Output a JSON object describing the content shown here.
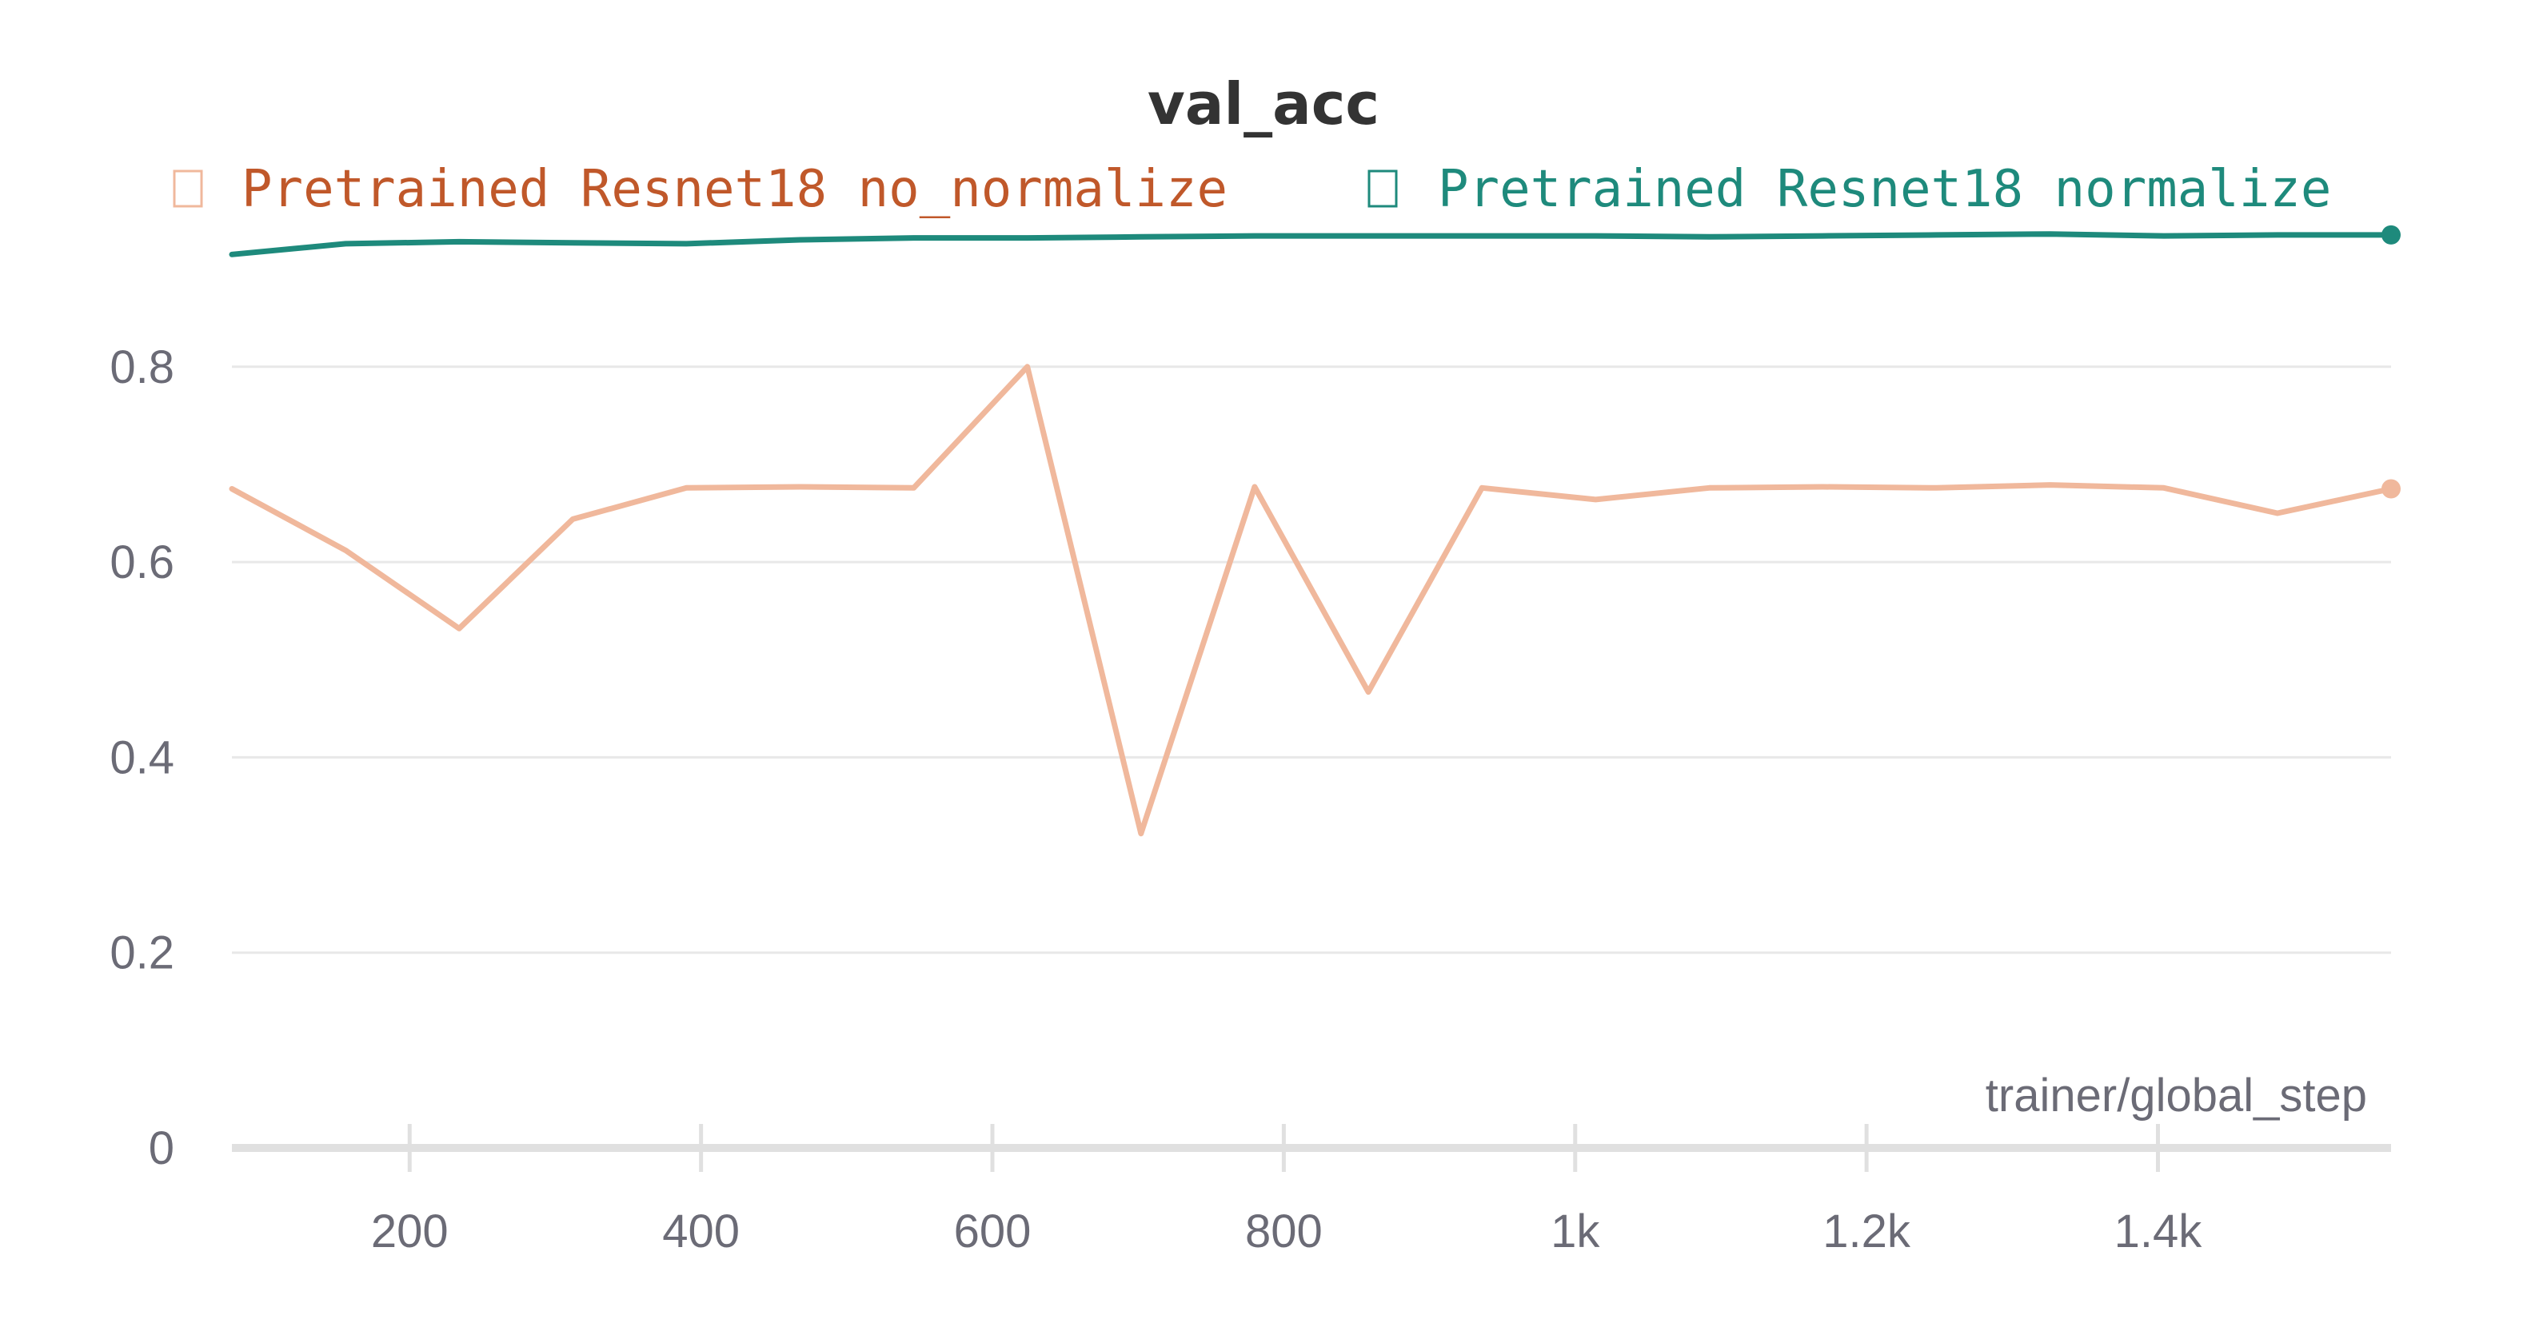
{
  "chart_data": {
    "type": "line",
    "title": "val_acc",
    "xlabel": "trainer/global_step",
    "ylabel": "",
    "xlim": [
      78,
      1560
    ],
    "ylim": [
      0,
      0.93
    ],
    "x_ticks": [
      200,
      400,
      600,
      800,
      1000,
      1200,
      1400
    ],
    "x_tick_labels": [
      "200",
      "400",
      "600",
      "800",
      "1k",
      "1.2k",
      "1.4k"
    ],
    "y_ticks": [
      0,
      0.2,
      0.4,
      0.6,
      0.8
    ],
    "y_tick_labels": [
      "0",
      "0.2",
      "0.4",
      "0.6",
      "0.8"
    ],
    "grid": true,
    "legend_position": "top",
    "series": [
      {
        "name": "Pretrained Resnet18 no_normalize",
        "line_color": "#f0b89c",
        "label_color": "#c0582a",
        "x": [
          78,
          156,
          234,
          312,
          390,
          468,
          546,
          624,
          702,
          780,
          858,
          936,
          1014,
          1092,
          1170,
          1248,
          1326,
          1404,
          1482,
          1560
        ],
        "values": [
          0.675,
          0.612,
          0.532,
          0.644,
          0.676,
          0.677,
          0.676,
          0.8,
          0.322,
          0.677,
          0.467,
          0.676,
          0.664,
          0.676,
          0.677,
          0.676,
          0.679,
          0.676,
          0.65,
          0.675
        ]
      },
      {
        "name": "Pretrained Resnet18 normalize",
        "line_color": "#1e8a7c",
        "label_color": "#1e8a7c",
        "x": [
          78,
          156,
          234,
          312,
          390,
          468,
          546,
          624,
          702,
          780,
          858,
          936,
          1014,
          1092,
          1170,
          1248,
          1326,
          1404,
          1482,
          1560
        ],
        "values": [
          0.915,
          0.926,
          0.928,
          0.927,
          0.926,
          0.93,
          0.932,
          0.932,
          0.933,
          0.934,
          0.934,
          0.934,
          0.934,
          0.933,
          0.934,
          0.935,
          0.936,
          0.934,
          0.935,
          0.935
        ]
      }
    ]
  }
}
